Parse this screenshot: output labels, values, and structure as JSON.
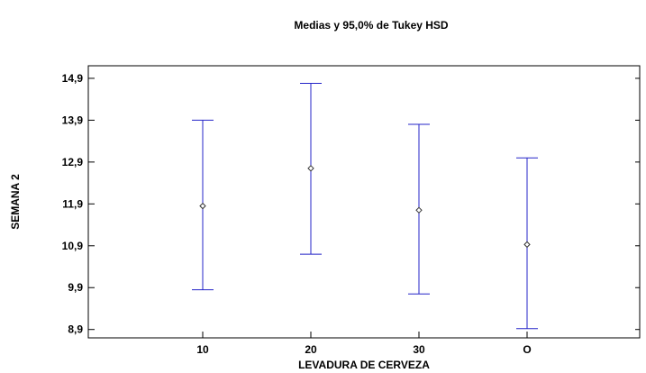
{
  "chart_data": {
    "type": "interval",
    "title": "Medias y 95,0% de Tukey HSD",
    "xlabel": "LEVADURA DE CERVEZA",
    "ylabel": "SEMANA 2",
    "categories": [
      "10",
      "20",
      "30",
      "O"
    ],
    "means": [
      11.85,
      12.75,
      11.75,
      10.93
    ],
    "lower": [
      9.85,
      10.7,
      9.75,
      8.92
    ],
    "upper": [
      13.9,
      14.78,
      13.8,
      13.0
    ],
    "y_ticks": [
      "8,9",
      "9,9",
      "10,9",
      "11,9",
      "12,9",
      "13,9",
      "14,9"
    ],
    "y_tick_values": [
      8.9,
      9.9,
      10.9,
      11.9,
      12.9,
      13.9,
      14.9
    ],
    "ylim": [
      8.7,
      15.2
    ],
    "grid": false,
    "colors": {
      "interval": "#2424c8",
      "axis": "#000000"
    }
  }
}
